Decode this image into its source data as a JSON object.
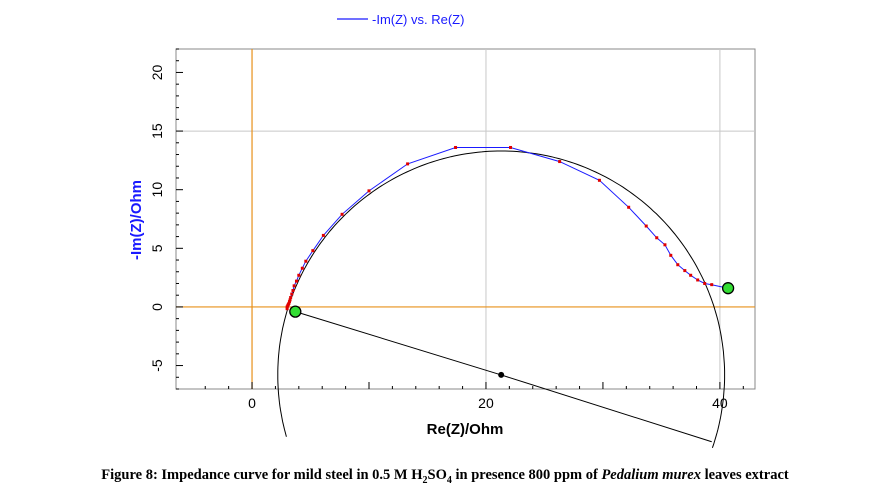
{
  "chart_data": {
    "type": "scatter",
    "legend": {
      "label": "-Im(Z) vs. Re(Z)",
      "position": "top"
    },
    "xlabel": "Re(Z)/Ohm",
    "ylabel": "-Im(Z)/Ohm",
    "xlim": [
      -6.5,
      43
    ],
    "ylim": [
      -7,
      22
    ],
    "x_ticks": [
      0,
      20,
      40
    ],
    "y_ticks": [
      -5,
      0,
      5,
      10,
      15,
      20
    ],
    "gridlines_x": [
      0,
      20,
      40
    ],
    "gridlines_y": [
      0,
      15
    ],
    "colors": {
      "series": "#1a1aff",
      "points": "#e00000",
      "fit": "#000000",
      "axis_zero": "#e8901a",
      "marker_fill": "#33dd33",
      "grid": "#c8c8c8"
    },
    "series": [
      {
        "name": "-Im(Z) vs. Re(Z)",
        "points": [
          [
            40.7,
            1.6
          ],
          [
            39.3,
            1.9
          ],
          [
            38.7,
            2.0
          ],
          [
            38.1,
            2.3
          ],
          [
            37.5,
            2.7
          ],
          [
            37.0,
            3.1
          ],
          [
            36.4,
            3.6
          ],
          [
            35.8,
            4.4
          ],
          [
            35.3,
            5.3
          ],
          [
            34.6,
            5.9
          ],
          [
            33.7,
            6.9
          ],
          [
            32.2,
            8.5
          ],
          [
            29.7,
            10.8
          ],
          [
            26.3,
            12.4
          ],
          [
            22.1,
            13.6
          ],
          [
            17.4,
            13.6
          ],
          [
            13.3,
            12.2
          ],
          [
            10.0,
            9.9
          ],
          [
            7.7,
            7.9
          ],
          [
            6.1,
            6.1
          ],
          [
            5.2,
            4.8
          ],
          [
            4.6,
            3.9
          ],
          [
            4.3,
            3.3
          ],
          [
            4.0,
            2.7
          ],
          [
            3.8,
            2.2
          ],
          [
            3.6,
            1.8
          ],
          [
            3.5,
            1.4
          ],
          [
            3.4,
            1.1
          ],
          [
            3.3,
            0.8
          ],
          [
            3.25,
            0.6
          ],
          [
            3.2,
            0.45
          ],
          [
            3.15,
            0.3
          ],
          [
            3.1,
            0.2
          ],
          [
            3.05,
            0.1
          ],
          [
            3.0,
            0.0
          ],
          [
            3.0,
            -0.15
          ]
        ]
      }
    ],
    "fit_arc": {
      "center": [
        21.3,
        -5.8
      ],
      "radius": 19.1,
      "start_angle_deg": -19,
      "end_angle_deg": 196
    },
    "fit_center_point": [
      21.3,
      -5.8
    ],
    "fit_radius_line_ends": [
      [
        3.7,
        -0.4
      ],
      [
        39.3,
        -11.5
      ]
    ],
    "end_markers": [
      [
        3.7,
        -0.4
      ],
      [
        40.7,
        1.6
      ]
    ],
    "caption": {
      "prefix": "Figure 8: Impedance curve for mild steel in 0.5 M H",
      "sub1": "2",
      "mid": "SO",
      "sub2": "4",
      "rest": " in presence 800 ppm of ",
      "italic": "Pedalium murex",
      "suffix": " leaves extract"
    }
  }
}
